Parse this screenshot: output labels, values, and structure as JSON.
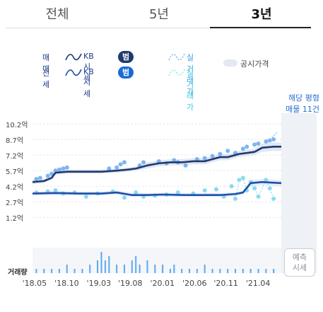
{
  "tabs": [
    {
      "label": "전체",
      "active": false
    },
    {
      "label": "5년",
      "active": false
    },
    {
      "label": "3년",
      "active": true
    }
  ],
  "legend": {
    "sale": {
      "type_label": "매매",
      "kb_label": "KB시세",
      "range_button": "범위보기",
      "real_label": "실거래가",
      "color": "#1f3a6e",
      "button_color": "#1f3a6e"
    },
    "jeonse": {
      "type_label": "전세",
      "kb_label": "KB시세",
      "range_button": "범위보기",
      "real_label": "실거래가",
      "color": "#1d4fa8",
      "button_color": "#1a6ad8"
    },
    "gongsi_label": "공시가격"
  },
  "side_note": {
    "line1": "해당 평형",
    "line2": "매물 11건"
  },
  "predict_button": {
    "line1": "예측",
    "line2": "시세"
  },
  "volume_label": "거래량",
  "chart_data": {
    "type": "line",
    "y_ticks": [
      "10.2억",
      "8.7억",
      "7.2억",
      "5.7억",
      "4.2억",
      "2.7억",
      "1.2억"
    ],
    "y_tick_values": [
      10.2,
      8.7,
      7.2,
      5.7,
      4.2,
      2.7,
      1.2
    ],
    "ylim": [
      0,
      10.2
    ],
    "x_ticks": [
      "'18.05",
      "'18.10",
      "'19.03",
      "'19.08",
      "'20.01",
      "'20.06",
      "'20.11",
      "'21.04"
    ],
    "x_tick_values": [
      2018.37,
      2018.79,
      2019.21,
      2019.62,
      2020.04,
      2020.46,
      2020.87,
      2021.29
    ],
    "xlim": [
      2018.3,
      2021.55
    ],
    "series": [
      {
        "name": "매매 KB시세",
        "color": "#1f3a6e",
        "x": [
          2018.3,
          2018.45,
          2018.55,
          2018.6,
          2018.75,
          2019.0,
          2019.2,
          2019.4,
          2019.55,
          2019.65,
          2019.8,
          2019.95,
          2020.1,
          2020.25,
          2020.4,
          2020.55,
          2020.65,
          2020.75,
          2020.85,
          2021.0,
          2021.1,
          2021.2,
          2021.3,
          2021.45,
          2021.55
        ],
        "values": [
          4.6,
          4.7,
          5.0,
          5.5,
          5.6,
          5.6,
          5.6,
          5.7,
          5.8,
          5.9,
          6.2,
          6.4,
          6.5,
          6.5,
          6.6,
          6.6,
          6.8,
          7.0,
          7.0,
          7.3,
          7.4,
          7.5,
          7.9,
          8.0,
          8.0
        ]
      },
      {
        "name": "전세 KB시세",
        "color": "#1d4fa8",
        "x": [
          2018.3,
          2018.6,
          2018.9,
          2019.2,
          2019.4,
          2019.6,
          2019.8,
          2020.0,
          2020.3,
          2020.6,
          2020.75,
          2020.85,
          2020.95,
          2021.05,
          2021.15,
          2021.3,
          2021.55
        ],
        "values": [
          3.5,
          3.55,
          3.5,
          3.5,
          3.6,
          3.35,
          3.35,
          3.4,
          3.35,
          3.35,
          3.35,
          3.4,
          3.45,
          3.6,
          4.5,
          4.6,
          4.5
        ]
      }
    ],
    "range_band_sale": {
      "low": [
        4.4,
        4.5,
        4.9,
        5.3,
        5.4,
        5.4,
        5.4,
        5.5,
        5.6,
        5.7,
        5.9,
        6.1,
        6.2,
        6.2,
        6.3,
        6.3,
        6.5,
        6.7,
        6.7,
        7.0,
        7.1,
        7.2,
        7.5,
        7.6,
        7.6
      ],
      "high": [
        4.8,
        4.9,
        5.2,
        5.7,
        5.8,
        5.8,
        5.8,
        5.9,
        6.0,
        6.1,
        6.5,
        6.7,
        6.8,
        6.8,
        6.9,
        6.9,
        7.1,
        7.3,
        7.3,
        7.6,
        7.7,
        7.8,
        8.3,
        8.4,
        8.4
      ]
    },
    "range_band_jeonse": {
      "low": [
        3.3,
        3.35,
        3.3,
        3.3,
        3.4,
        3.15,
        3.15,
        3.2,
        3.15,
        3.15,
        3.15,
        3.2,
        3.25,
        3.4,
        4.2,
        4.3,
        4.2
      ],
      "high": [
        3.7,
        3.75,
        3.7,
        3.7,
        3.8,
        3.55,
        3.55,
        3.6,
        3.55,
        3.55,
        3.55,
        3.6,
        3.65,
        3.8,
        4.8,
        4.9,
        4.8
      ]
    },
    "real_sale_points": {
      "x": [
        2018.35,
        2018.4,
        2018.5,
        2018.55,
        2018.6,
        2018.65,
        2018.7,
        2018.75,
        2019.3,
        2019.4,
        2019.45,
        2019.5,
        2019.7,
        2019.75,
        2019.95,
        2020.05,
        2020.15,
        2020.2,
        2020.3,
        2020.45,
        2020.55,
        2020.65,
        2020.75,
        2020.85,
        2020.95,
        2021.05,
        2021.1,
        2021.2,
        2021.25,
        2021.35,
        2021.4,
        2021.45
      ],
      "values": [
        4.9,
        5.0,
        5.2,
        5.4,
        5.7,
        5.8,
        5.9,
        6.0,
        5.9,
        6.0,
        6.3,
        6.5,
        6.2,
        6.5,
        6.6,
        6.4,
        6.7,
        6.5,
        6.2,
        6.8,
        6.9,
        7.1,
        7.3,
        7.6,
        7.4,
        7.8,
        8.0,
        8.2,
        8.3,
        8.5,
        8.6,
        8.7
      ]
    },
    "real_jeonse_points": {
      "x": [
        2018.35,
        2018.5,
        2018.6,
        2018.7,
        2018.85,
        2019.0,
        2019.15,
        2019.35,
        2019.5,
        2019.65,
        2019.75,
        2019.9,
        2020.05,
        2020.2,
        2020.4,
        2020.55,
        2020.7,
        2020.8,
        2020.9,
        2020.95,
        2021.0,
        2021.05,
        2021.1,
        2021.15,
        2021.2,
        2021.25,
        2021.35,
        2021.4,
        2021.45
      ],
      "values": [
        3.6,
        3.7,
        3.8,
        3.5,
        3.6,
        3.2,
        3.5,
        3.7,
        3.1,
        3.6,
        3.2,
        3.3,
        3.4,
        3.6,
        3.5,
        3.8,
        3.9,
        3.2,
        4.2,
        3.0,
        4.8,
        5.0,
        3.8,
        4.6,
        4.0,
        3.2,
        4.8,
        4.0,
        3.0
      ]
    },
    "real_sale_latest_x": [
      2021.4,
      2021.5
    ],
    "real_sale_latest_values": [
      8.7,
      9.4
    ],
    "volume": {
      "x": [
        2018.35,
        2018.45,
        2018.55,
        2018.65,
        2018.75,
        2018.85,
        2018.95,
        2019.05,
        2019.15,
        2019.2,
        2019.25,
        2019.3,
        2019.4,
        2019.5,
        2019.6,
        2019.65,
        2019.7,
        2019.8,
        2019.9,
        2020.0,
        2020.1,
        2020.15,
        2020.25,
        2020.35,
        2020.45,
        2020.55,
        2020.65,
        2020.75,
        2020.85,
        2020.95,
        2021.05,
        2021.15,
        2021.25,
        2021.35,
        2021.45
      ],
      "values": [
        1,
        1,
        1,
        1,
        2,
        1,
        1,
        2,
        3,
        5,
        3,
        4,
        2,
        2,
        3,
        4,
        2,
        3,
        2,
        2,
        1,
        2,
        1,
        1,
        1,
        2,
        1,
        1,
        1,
        1,
        1,
        1,
        1,
        1,
        1
      ],
      "max": 6
    }
  }
}
